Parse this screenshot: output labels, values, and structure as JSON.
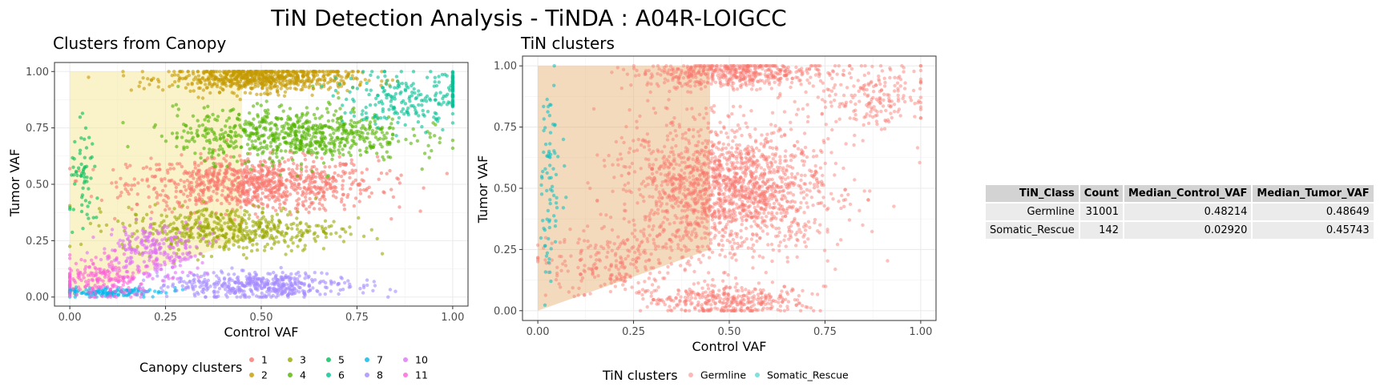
{
  "title": "TiN Detection Analysis - TiNDA : A04R-LOIGCC",
  "chart_data": [
    {
      "type": "scatter",
      "title": "Clusters from Canopy",
      "xlabel": "Control VAF",
      "ylabel": "Tumor VAF",
      "xlim": [
        -0.04,
        1.04
      ],
      "ylim": [
        -0.04,
        1.04
      ],
      "x_ticks": [
        0.0,
        0.25,
        0.5,
        0.75,
        1.0
      ],
      "y_ticks": [
        0.0,
        0.25,
        0.5,
        0.75,
        1.0
      ],
      "x_tick_labels": [
        "0.00",
        "0.25",
        "0.50",
        "0.75",
        "1.00"
      ],
      "y_tick_labels": [
        "0.00",
        "0.25",
        "0.50",
        "0.75",
        "1.00"
      ],
      "grid": true,
      "rescue_region": [
        [
          0.0,
          0.0
        ],
        [
          0.0,
          1.0
        ],
        [
          0.45,
          1.0
        ],
        [
          0.45,
          0.25
        ],
        [
          0.0,
          0.0
        ]
      ],
      "rescue_region_color": "#f4e58a",
      "legend_title": "Canopy clusters",
      "legend_position": "bottom",
      "series": [
        {
          "name": "1",
          "color": "#F8766D",
          "center": [
            0.48,
            0.5
          ],
          "spread": [
            0.16,
            0.06
          ],
          "count": 900
        },
        {
          "name": "2",
          "color": "#C49A00",
          "center": [
            0.5,
            0.97
          ],
          "spread": [
            0.12,
            0.03
          ],
          "count": 700
        },
        {
          "name": "3",
          "color": "#99A800",
          "center": [
            0.42,
            0.3
          ],
          "spread": [
            0.14,
            0.05
          ],
          "count": 500
        },
        {
          "name": "4",
          "color": "#53B400",
          "center": [
            0.58,
            0.72
          ],
          "spread": [
            0.15,
            0.06
          ],
          "count": 700
        },
        {
          "name": "5",
          "color": "#00BC56",
          "center": [
            0.04,
            0.5
          ],
          "spread": [
            0.02,
            0.12
          ],
          "count": 60
        },
        {
          "name": "6",
          "color": "#00C094",
          "center": [
            0.88,
            0.88
          ],
          "spread": [
            0.08,
            0.06
          ],
          "count": 250
        },
        {
          "name": "7",
          "color": "#00B6EB",
          "center": [
            0.1,
            0.02
          ],
          "spread": [
            0.07,
            0.01
          ],
          "count": 150
        },
        {
          "name": "8",
          "color": "#A58AFF",
          "center": [
            0.5,
            0.05
          ],
          "spread": [
            0.12,
            0.03
          ],
          "count": 450
        },
        {
          "name": "10",
          "color": "#DF70F8",
          "center": [
            0.22,
            0.2
          ],
          "spread": [
            0.06,
            0.06
          ],
          "count": 250
        },
        {
          "name": "11",
          "color": "#FB61D7",
          "center": [
            0.08,
            0.08
          ],
          "spread": [
            0.06,
            0.05
          ],
          "count": 200
        }
      ]
    },
    {
      "type": "scatter",
      "title": "TiN clusters",
      "xlabel": "Control VAF",
      "ylabel": "Tumor VAF",
      "xlim": [
        -0.04,
        1.04
      ],
      "ylim": [
        -0.04,
        1.04
      ],
      "x_ticks": [
        0.0,
        0.25,
        0.5,
        0.75,
        1.0
      ],
      "y_ticks": [
        0.0,
        0.25,
        0.5,
        0.75,
        1.0
      ],
      "x_tick_labels": [
        "0.00",
        "0.25",
        "0.50",
        "0.75",
        "1.00"
      ],
      "y_tick_labels": [
        "0.00",
        "0.25",
        "0.50",
        "0.75",
        "1.00"
      ],
      "grid": true,
      "rescue_region": [
        [
          0.0,
          0.0
        ],
        [
          0.0,
          1.0
        ],
        [
          0.45,
          1.0
        ],
        [
          0.45,
          0.25
        ],
        [
          0.0,
          0.0
        ]
      ],
      "rescue_region_color": "#e6ac6a",
      "legend_title": "TiN clusters",
      "legend_position": "bottom",
      "series": [
        {
          "name": "Germline",
          "color": "#F8766D",
          "count": 31001
        },
        {
          "name": "Somatic_Rescue",
          "color": "#00BFC4",
          "count": 142
        }
      ]
    },
    {
      "type": "table",
      "columns": [
        "TiN_Class",
        "Count",
        "Median_Control_VAF",
        "Median_Tumor_VAF"
      ],
      "rows": [
        [
          "Germline",
          "31001",
          "0.48214",
          "0.48649"
        ],
        [
          "Somatic_Rescue",
          "142",
          "0.02920",
          "0.45743"
        ]
      ]
    }
  ]
}
